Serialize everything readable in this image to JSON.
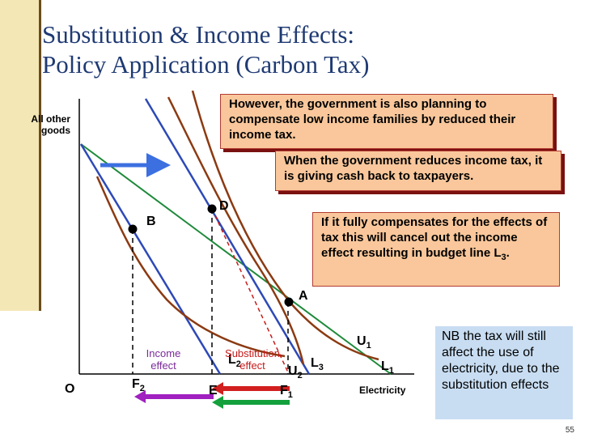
{
  "slide": {
    "title_line1": "Substitution & Income Effects:",
    "title_line2": "Policy Application (Carbon Tax)",
    "page_number": "55",
    "accent_bar_color": "#f3e7b6"
  },
  "axes": {
    "y_label_line1": "All other",
    "y_label_line2": "goods",
    "x_label": "Electricity",
    "origin": "O"
  },
  "callouts": {
    "box1": "However, the government is also planning to compensate low income families by reduced their income tax.",
    "box2": "When the government reduces income tax, it is giving cash back to taxpayers.",
    "box3_text": "If it fully compensates for the effects of tax this will cancel out the income effect resulting in budget line L",
    "box3_sub": "3",
    "box3_end": ".",
    "nb_note": "NB the tax will still affect the use of electricity, due to the substitution effects"
  },
  "points": {
    "a": "A",
    "b": "B",
    "d": "D"
  },
  "lines": {
    "l1": "L",
    "l1_sub": "1",
    "l2": "L",
    "l2_sub": "2",
    "l3": "L",
    "l3_sub": "3",
    "u1": "U",
    "u1_sub": "1",
    "u2": "U",
    "u2_sub": "2"
  },
  "x_points": {
    "f2": "F",
    "f2_sub": "2",
    "e": "E",
    "f1": "F",
    "f1_sub": "1"
  },
  "effects": {
    "income_line1": "Income",
    "income_line2": "effect",
    "substitution_line1": "Substitution",
    "substitution_line2": "effect"
  },
  "colors": {
    "budget_blue": "#2d49b8",
    "budget_green": "#1e8a3a",
    "indifference": "#8b3a12",
    "income_effect": "#7a2a9a",
    "substitution_effect": "#c61b1b",
    "arrow_blue": "#3c6fe0",
    "arrow_purple": "#a020c0",
    "arrow_red": "#d21f1f",
    "arrow_green": "#14a03c"
  },
  "icons": [
    "arrow-right-icon",
    "arrow-left-icon"
  ]
}
